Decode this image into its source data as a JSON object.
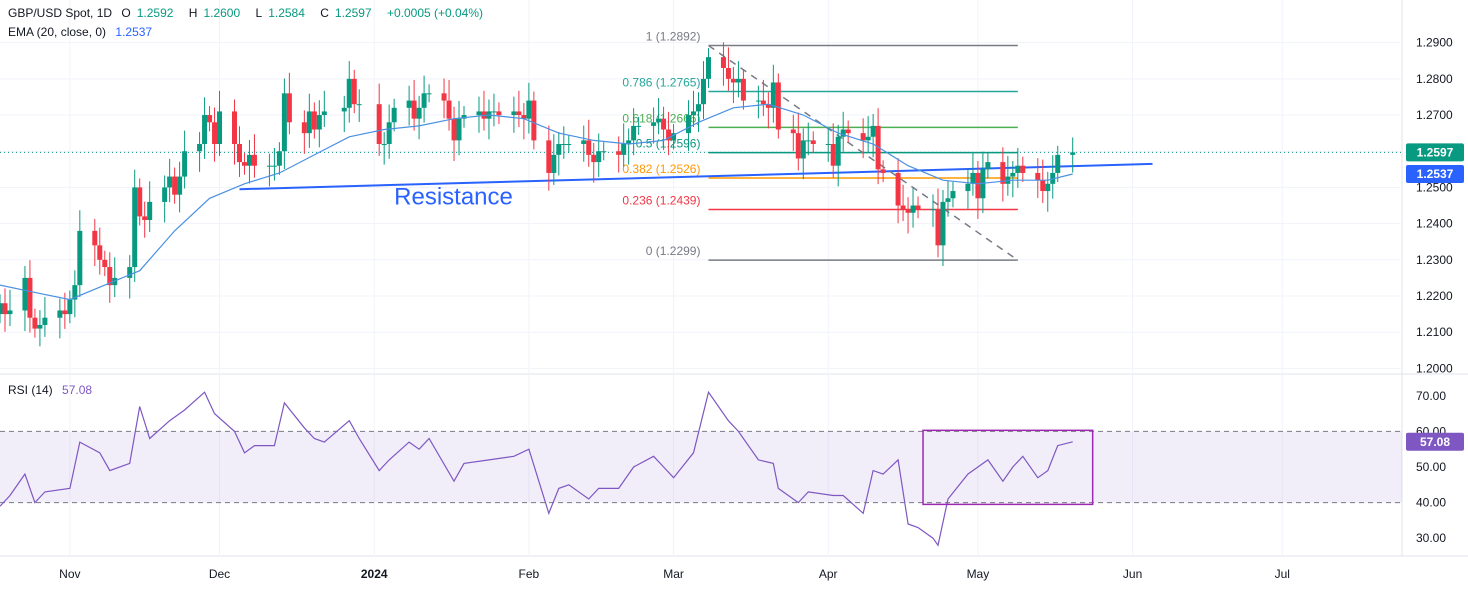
{
  "header": {
    "symbol": "GBP/USD Spot, 1D",
    "open_label": "O",
    "open": "1.2592",
    "high_label": "H",
    "high": "1.2600",
    "low_label": "L",
    "low": "1.2584",
    "close_label": "C",
    "close": "1.2597",
    "change": "+0.0005 (+0.04%)",
    "ema_label": "EMA (20, close, 0)",
    "ema_value": "1.2537",
    "rsi_label": "RSI (14)",
    "rsi_value": "57.08"
  },
  "colors": {
    "up": "#089981",
    "down": "#f23645",
    "ema": "#2962ff",
    "rsi": "#7e57c2",
    "grid": "#f0f3fa",
    "axis_text": "#131722"
  },
  "chart_data": [
    {
      "type": "candlestick",
      "title": "GBP/USD Spot, 1D",
      "y_ticks": [
        "1.2900",
        "1.2800",
        "1.2700",
        "1.2600",
        "1.2500",
        "1.2400",
        "1.2300",
        "1.2200",
        "1.2100",
        "1.2000"
      ],
      "ylim": [
        1.199,
        1.2935
      ],
      "x_ticks": [
        "Nov",
        "Dec",
        "2024",
        "Feb",
        "Mar",
        "Apr",
        "May",
        "Jun",
        "Jul"
      ],
      "x_tick_dates": [
        "2023-11-01",
        "2023-12-01",
        "2024-01-01",
        "2024-02-01",
        "2024-03-01",
        "2024-04-01",
        "2024-05-01",
        "2024-06-01",
        "2024-07-01"
      ],
      "xlim": [
        "2023-10-18",
        "2024-07-25"
      ],
      "price_label": "1.2597",
      "ema_label": "1.2537",
      "closes": [
        [
          "2023-10-18",
          1.218
        ],
        [
          "2023-10-19",
          1.215
        ],
        [
          "2023-10-20",
          1.216
        ],
        [
          "2023-10-23",
          1.225
        ],
        [
          "2023-10-24",
          1.214
        ],
        [
          "2023-10-25",
          1.211
        ],
        [
          "2023-10-26",
          1.212
        ],
        [
          "2023-10-27",
          1.214
        ],
        [
          "2023-10-30",
          1.216
        ],
        [
          "2023-10-31",
          1.215
        ],
        [
          "2023-11-01",
          1.219
        ],
        [
          "2023-11-02",
          1.223
        ],
        [
          "2023-11-03",
          1.238
        ],
        [
          "2023-11-06",
          1.234
        ],
        [
          "2023-11-07",
          1.23
        ],
        [
          "2023-11-08",
          1.228
        ],
        [
          "2023-11-09",
          1.223
        ],
        [
          "2023-11-10",
          1.225
        ],
        [
          "2023-11-13",
          1.228
        ],
        [
          "2023-11-14",
          1.25
        ],
        [
          "2023-11-15",
          1.242
        ],
        [
          "2023-11-16",
          1.241
        ],
        [
          "2023-11-17",
          1.246
        ],
        [
          "2023-11-20",
          1.25
        ],
        [
          "2023-11-21",
          1.253
        ],
        [
          "2023-11-22",
          1.248
        ],
        [
          "2023-11-23",
          1.253
        ],
        [
          "2023-11-24",
          1.26
        ],
        [
          "2023-11-27",
          1.262
        ],
        [
          "2023-11-28",
          1.27
        ],
        [
          "2023-11-29",
          1.268
        ],
        [
          "2023-11-30",
          1.262
        ],
        [
          "2023-12-01",
          1.271
        ],
        [
          "2023-12-04",
          1.262
        ],
        [
          "2023-12-05",
          1.257
        ],
        [
          "2023-12-06",
          1.256
        ],
        [
          "2023-12-07",
          1.259
        ],
        [
          "2023-12-08",
          1.256
        ],
        [
          "2023-12-11",
          1.256
        ],
        [
          "2023-12-12",
          1.256
        ],
        [
          "2023-12-13",
          1.26
        ],
        [
          "2023-12-14",
          1.276
        ],
        [
          "2023-12-15",
          1.268
        ],
        [
          "2023-12-18",
          1.265
        ],
        [
          "2023-12-19",
          1.271
        ],
        [
          "2023-12-20",
          1.266
        ],
        [
          "2023-12-21",
          1.27
        ],
        [
          "2023-12-22",
          1.271
        ],
        [
          "2023-12-26",
          1.272
        ],
        [
          "2023-12-27",
          1.28
        ],
        [
          "2023-12-28",
          1.273
        ],
        [
          "2023-12-29",
          1.273
        ],
        [
          "2024-01-02",
          1.262
        ],
        [
          "2024-01-03",
          1.262
        ],
        [
          "2024-01-04",
          1.268
        ],
        [
          "2024-01-05",
          1.272
        ],
        [
          "2024-01-08",
          1.274
        ],
        [
          "2024-01-09",
          1.269
        ],
        [
          "2024-01-10",
          1.272
        ],
        [
          "2024-01-11",
          1.276
        ],
        [
          "2024-01-12",
          1.276
        ],
        [
          "2024-01-15",
          1.274
        ],
        [
          "2024-01-16",
          1.269
        ],
        [
          "2024-01-17",
          1.263
        ],
        [
          "2024-01-18",
          1.269
        ],
        [
          "2024-01-19",
          1.27
        ],
        [
          "2024-01-22",
          1.271
        ],
        [
          "2024-01-23",
          1.269
        ],
        [
          "2024-01-24",
          1.271
        ],
        [
          "2024-01-25",
          1.271
        ],
        [
          "2024-01-26",
          1.27
        ],
        [
          "2024-01-29",
          1.271
        ],
        [
          "2024-01-30",
          1.27
        ],
        [
          "2024-01-31",
          1.269
        ],
        [
          "2024-02-01",
          1.274
        ],
        [
          "2024-02-02",
          1.263
        ],
        [
          "2024-02-05",
          1.254
        ],
        [
          "2024-02-06",
          1.259
        ],
        [
          "2024-02-07",
          1.262
        ],
        [
          "2024-02-08",
          1.262
        ],
        [
          "2024-02-09",
          1.262
        ],
        [
          "2024-02-12",
          1.263
        ],
        [
          "2024-02-13",
          1.259
        ],
        [
          "2024-02-14",
          1.257
        ],
        [
          "2024-02-15",
          1.26
        ],
        [
          "2024-02-16",
          1.26
        ],
        [
          "2024-02-19",
          1.259
        ],
        [
          "2024-02-20",
          1.262
        ],
        [
          "2024-02-21",
          1.263
        ],
        [
          "2024-02-22",
          1.267
        ],
        [
          "2024-02-23",
          1.267
        ],
        [
          "2024-02-26",
          1.268
        ],
        [
          "2024-02-27",
          1.269
        ],
        [
          "2024-02-28",
          1.266
        ],
        [
          "2024-02-29",
          1.263
        ],
        [
          "2024-03-01",
          1.265
        ],
        [
          "2024-03-04",
          1.27
        ],
        [
          "2024-03-05",
          1.271
        ],
        [
          "2024-03-06",
          1.273
        ],
        [
          "2024-03-07",
          1.28
        ],
        [
          "2024-03-08",
          1.286
        ],
        [
          "2024-03-11",
          1.283
        ],
        [
          "2024-03-12",
          1.28
        ],
        [
          "2024-03-13",
          1.279
        ],
        [
          "2024-03-14",
          1.28
        ],
        [
          "2024-03-15",
          1.274
        ],
        [
          "2024-03-18",
          1.274
        ],
        [
          "2024-03-19",
          1.273
        ],
        [
          "2024-03-20",
          1.272
        ],
        [
          "2024-03-21",
          1.279
        ],
        [
          "2024-03-22",
          1.266
        ],
        [
          "2024-03-25",
          1.265
        ],
        [
          "2024-03-26",
          1.258
        ],
        [
          "2024-03-27",
          1.263
        ],
        [
          "2024-03-28",
          1.263
        ],
        [
          "2024-03-29",
          1.262
        ],
        [
          "2024-04-01",
          1.262
        ],
        [
          "2024-04-02",
          1.256
        ],
        [
          "2024-04-03",
          1.264
        ],
        [
          "2024-04-04",
          1.266
        ],
        [
          "2024-04-05",
          1.265
        ],
        [
          "2024-04-08",
          1.263
        ],
        [
          "2024-04-09",
          1.264
        ],
        [
          "2024-04-10",
          1.267
        ],
        [
          "2024-04-11",
          1.255
        ],
        [
          "2024-04-12",
          1.254
        ],
        [
          "2024-04-15",
          1.245
        ],
        [
          "2024-04-16",
          1.244
        ],
        [
          "2024-04-17",
          1.243
        ],
        [
          "2024-04-18",
          1.245
        ],
        [
          "2024-04-19",
          1.244
        ],
        [
          "2024-04-22",
          1.244
        ],
        [
          "2024-04-23",
          1.234
        ],
        [
          "2024-04-24",
          1.246
        ],
        [
          "2024-04-25",
          1.247
        ],
        [
          "2024-04-26",
          1.249
        ],
        [
          "2024-04-29",
          1.251
        ],
        [
          "2024-04-30",
          1.254
        ],
        [
          "2024-05-01",
          1.247
        ],
        [
          "2024-05-02",
          1.255
        ],
        [
          "2024-05-03",
          1.257
        ],
        [
          "2024-05-06",
          1.251
        ],
        [
          "2024-05-07",
          1.253
        ],
        [
          "2024-05-08",
          1.254
        ],
        [
          "2024-05-09",
          1.256
        ],
        [
          "2024-05-10",
          1.254
        ],
        [
          "2024-05-13",
          1.252
        ],
        [
          "2024-05-14",
          1.249
        ],
        [
          "2024-05-15",
          1.251
        ],
        [
          "2024-05-16",
          1.254
        ],
        [
          "2024-05-17",
          1.259
        ],
        [
          "2024-05-20",
          1.2597
        ]
      ],
      "ema20": [
        [
          "2023-10-18",
          1.223
        ],
        [
          "2023-10-25",
          1.221
        ],
        [
          "2023-11-01",
          1.219
        ],
        [
          "2023-11-08",
          1.223
        ],
        [
          "2023-11-15",
          1.227
        ],
        [
          "2023-11-22",
          1.238
        ],
        [
          "2023-11-29",
          1.247
        ],
        [
          "2023-12-06",
          1.251
        ],
        [
          "2023-12-13",
          1.254
        ],
        [
          "2023-12-20",
          1.259
        ],
        [
          "2023-12-27",
          1.264
        ],
        [
          "2024-01-03",
          1.266
        ],
        [
          "2024-01-10",
          1.267
        ],
        [
          "2024-01-17",
          1.269
        ],
        [
          "2024-01-24",
          1.27
        ],
        [
          "2024-01-31",
          1.269
        ],
        [
          "2024-02-07",
          1.265
        ],
        [
          "2024-02-14",
          1.263
        ],
        [
          "2024-02-21",
          1.262
        ],
        [
          "2024-02-28",
          1.263
        ],
        [
          "2024-03-06",
          1.268
        ],
        [
          "2024-03-13",
          1.272
        ],
        [
          "2024-03-20",
          1.273
        ],
        [
          "2024-03-27",
          1.27
        ],
        [
          "2024-04-03",
          1.265
        ],
        [
          "2024-04-10",
          1.262
        ],
        [
          "2024-04-17",
          1.256
        ],
        [
          "2024-04-24",
          1.252
        ],
        [
          "2024-05-01",
          1.251
        ],
        [
          "2024-05-08",
          1.252
        ],
        [
          "2024-05-15",
          1.252
        ],
        [
          "2024-05-20",
          1.2537
        ]
      ],
      "fibonacci": {
        "start_date": "2024-03-08",
        "end_date": "2024-05-09",
        "levels": [
          {
            "label": "1 (1.2892)",
            "value": 1.2892,
            "color": "#787b86"
          },
          {
            "label": "0.786 (1.2765)",
            "value": 1.2765,
            "color": "#26a69a"
          },
          {
            "label": "0.618 (1.2666)",
            "value": 1.2666,
            "color": "#4caf50"
          },
          {
            "label": "0.5 (1.2596)",
            "value": 1.2596,
            "color": "#089981"
          },
          {
            "label": "0.382 (1.2526)",
            "value": 1.2526,
            "color": "#ff9800"
          },
          {
            "label": "0.236 (1.2439)",
            "value": 1.2439,
            "color": "#f23645"
          },
          {
            "label": "0 (1.2299)",
            "value": 1.2299,
            "color": "#787b86"
          }
        ]
      },
      "trendlines": [
        {
          "name": "resistance",
          "from": [
            "2023-12-05",
            1.2495
          ],
          "to": [
            "2024-06-05",
            1.2565
          ],
          "color": "#2962ff"
        },
        {
          "name": "downtrend",
          "from": [
            "2024-03-08",
            1.2892
          ],
          "to": [
            "2024-05-09",
            1.2299
          ],
          "color": "#787b86",
          "dashed": true
        }
      ],
      "annotation": {
        "text": "Resistance",
        "date": "2024-01-05",
        "value": 1.2475
      }
    },
    {
      "type": "line",
      "title": "RSI (14)",
      "y_ticks": [
        "70.00",
        "60.00",
        "50.00",
        "40.00",
        "30.00"
      ],
      "ylim": [
        25,
        75
      ],
      "band": [
        40,
        60
      ],
      "last_label": "57.08",
      "values": [
        [
          "2023-10-18",
          39
        ],
        [
          "2023-10-20",
          42
        ],
        [
          "2023-10-23",
          48
        ],
        [
          "2023-10-25",
          40
        ],
        [
          "2023-10-27",
          43
        ],
        [
          "2023-11-01",
          44
        ],
        [
          "2023-11-03",
          57
        ],
        [
          "2023-11-07",
          54
        ],
        [
          "2023-11-09",
          49
        ],
        [
          "2023-11-13",
          51
        ],
        [
          "2023-11-15",
          67
        ],
        [
          "2023-11-17",
          58
        ],
        [
          "2023-11-21",
          63
        ],
        [
          "2023-11-24",
          66
        ],
        [
          "2023-11-28",
          71
        ],
        [
          "2023-11-30",
          65
        ],
        [
          "2023-12-04",
          60
        ],
        [
          "2023-12-06",
          54
        ],
        [
          "2023-12-08",
          56
        ],
        [
          "2023-12-12",
          56
        ],
        [
          "2023-12-14",
          68
        ],
        [
          "2023-12-18",
          61
        ],
        [
          "2023-12-20",
          58
        ],
        [
          "2023-12-22",
          57
        ],
        [
          "2023-12-27",
          63
        ],
        [
          "2023-12-29",
          58
        ],
        [
          "2024-01-02",
          49
        ],
        [
          "2024-01-04",
          52
        ],
        [
          "2024-01-08",
          57
        ],
        [
          "2024-01-10",
          55
        ],
        [
          "2024-01-12",
          58
        ],
        [
          "2024-01-17",
          46
        ],
        [
          "2024-01-19",
          51
        ],
        [
          "2024-01-24",
          52
        ],
        [
          "2024-01-29",
          53
        ],
        [
          "2024-02-01",
          55
        ],
        [
          "2024-02-05",
          37
        ],
        [
          "2024-02-07",
          44
        ],
        [
          "2024-02-09",
          45
        ],
        [
          "2024-02-13",
          41
        ],
        [
          "2024-02-15",
          44
        ],
        [
          "2024-02-19",
          44
        ],
        [
          "2024-02-22",
          50
        ],
        [
          "2024-02-26",
          53
        ],
        [
          "2024-02-28",
          50
        ],
        [
          "2024-03-01",
          47
        ],
        [
          "2024-03-05",
          54
        ],
        [
          "2024-03-08",
          71
        ],
        [
          "2024-03-12",
          63
        ],
        [
          "2024-03-14",
          60
        ],
        [
          "2024-03-18",
          52
        ],
        [
          "2024-03-21",
          51
        ],
        [
          "2024-03-22",
          44
        ],
        [
          "2024-03-26",
          40
        ],
        [
          "2024-03-28",
          43
        ],
        [
          "2024-04-02",
          42
        ],
        [
          "2024-04-04",
          42
        ],
        [
          "2024-04-08",
          37
        ],
        [
          "2024-04-10",
          49
        ],
        [
          "2024-04-12",
          48
        ],
        [
          "2024-04-15",
          52
        ],
        [
          "2024-04-17",
          34
        ],
        [
          "2024-04-19",
          33
        ],
        [
          "2024-04-22",
          30
        ],
        [
          "2024-04-23",
          28
        ],
        [
          "2024-04-25",
          41
        ],
        [
          "2024-04-29",
          48
        ],
        [
          "2024-05-01",
          50
        ],
        [
          "2024-05-03",
          52
        ],
        [
          "2024-05-06",
          46
        ],
        [
          "2024-05-08",
          50
        ],
        [
          "2024-05-10",
          53
        ],
        [
          "2024-05-13",
          47
        ],
        [
          "2024-05-15",
          49
        ],
        [
          "2024-05-17",
          56
        ],
        [
          "2024-05-20",
          57.08
        ]
      ],
      "highlight_box": {
        "from": "2024-04-20",
        "to": "2024-05-24",
        "ymin": 39.5,
        "ymax": 60.3
      }
    }
  ]
}
